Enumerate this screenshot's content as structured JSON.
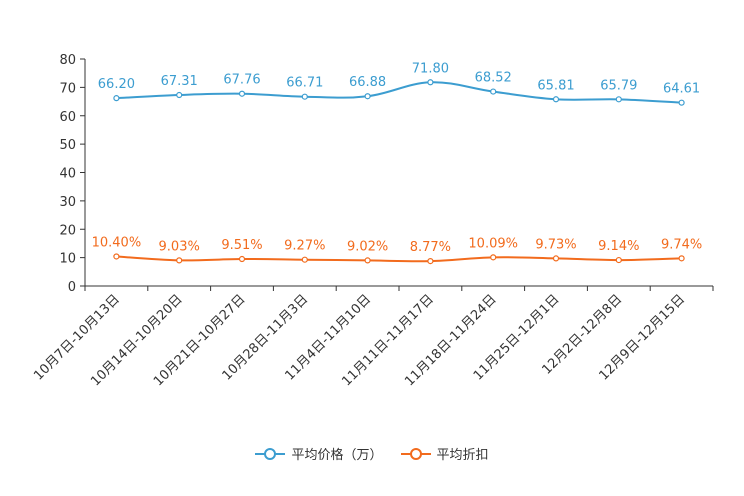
{
  "chart_data": {
    "type": "line",
    "categories": [
      "10月7日-10月13日",
      "10月14日-10月20日",
      "10月21日-10月27日",
      "10月28日-11月3日",
      "11月4日-11月10日",
      "11月11日-11月17日",
      "11月18日-11月24日",
      "11月25日-12月1日",
      "12月2日-12月8日",
      "12月9日-12月15日"
    ],
    "series": [
      {
        "name": "平均价格（万）",
        "color": "#3c9dd0",
        "values": [
          66.2,
          67.31,
          67.76,
          66.71,
          66.88,
          71.8,
          68.52,
          65.81,
          65.79,
          64.61
        ],
        "labels": [
          "66.20",
          "67.31",
          "67.76",
          "66.71",
          "66.88",
          "71.80",
          "68.52",
          "65.81",
          "65.79",
          "64.61"
        ]
      },
      {
        "name": "平均折扣",
        "color": "#f26b1d",
        "values": [
          10.4,
          9.03,
          9.51,
          9.27,
          9.02,
          8.77,
          10.09,
          9.73,
          9.14,
          9.74
        ],
        "labels": [
          "10.40%",
          "9.03%",
          "9.51%",
          "9.27%",
          "9.02%",
          "8.77%",
          "10.09%",
          "9.73%",
          "9.14%",
          "9.74%"
        ]
      }
    ],
    "yticks": [
      "0",
      "10",
      "20",
      "30",
      "40",
      "50",
      "60",
      "70",
      "80"
    ],
    "ylim": [
      0,
      80
    ],
    "title": "",
    "xlabel": "",
    "ylabel": "",
    "grid": false,
    "legend_position": "bottom"
  }
}
